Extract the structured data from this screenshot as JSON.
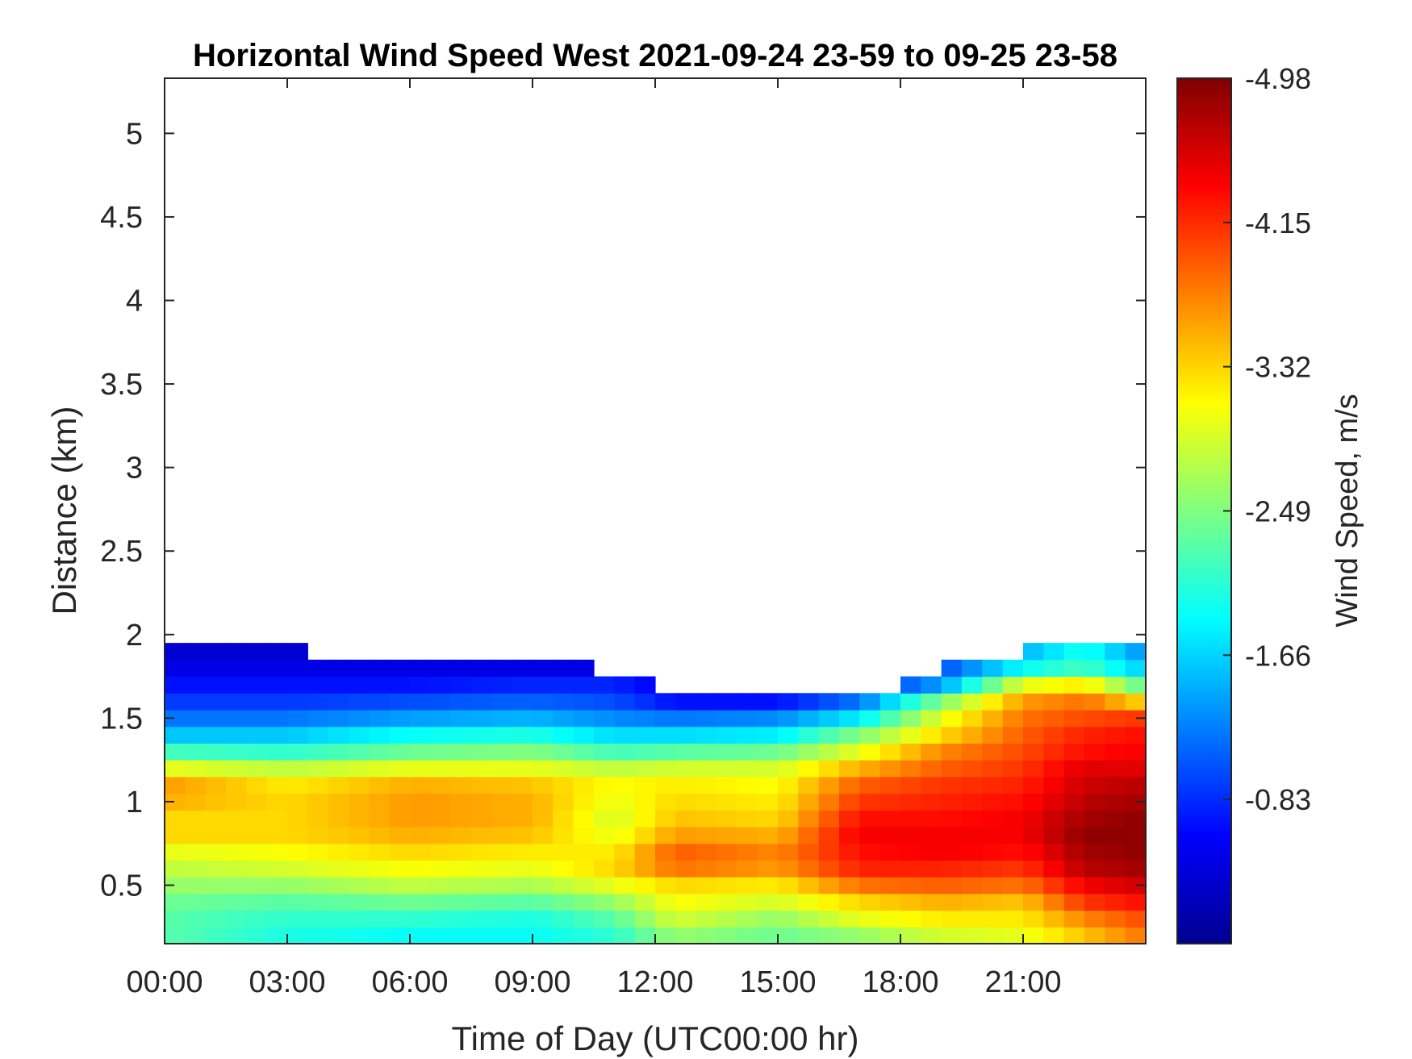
{
  "chart_data": {
    "type": "heatmap",
    "title": "Horizontal Wind Speed West 2021-09-24 23-59 to 09-25 23-58",
    "xlabel": "Time of Day (UTC00:00 hr)",
    "ylabel": "Distance (km)",
    "x_ticks": [
      {
        "value": 0,
        "label": "00:00"
      },
      {
        "value": 3,
        "label": "03:00"
      },
      {
        "value": 6,
        "label": "06:00"
      },
      {
        "value": 9,
        "label": "09:00"
      },
      {
        "value": 12,
        "label": "12:00"
      },
      {
        "value": 15,
        "label": "15:00"
      },
      {
        "value": 18,
        "label": "18:00"
      },
      {
        "value": 21,
        "label": "21:00"
      }
    ],
    "xlim": [
      0,
      24
    ],
    "y_ticks": [
      {
        "value": 0.5,
        "label": "0.5"
      },
      {
        "value": 1,
        "label": "1"
      },
      {
        "value": 1.5,
        "label": "1.5"
      },
      {
        "value": 2,
        "label": "2"
      },
      {
        "value": 2.5,
        "label": "2.5"
      },
      {
        "value": 3,
        "label": "3"
      },
      {
        "value": 3.5,
        "label": "3.5"
      },
      {
        "value": 4,
        "label": "4"
      },
      {
        "value": 4.5,
        "label": "4.5"
      },
      {
        "value": 5,
        "label": "5"
      }
    ],
    "ylim": [
      0.15,
      5.33
    ],
    "colorbar": {
      "label": "Wind Speed, m/s",
      "colormap": "jet-reversed",
      "range": [
        -0.0,
        -4.98
      ],
      "ticks": [
        {
          "value": -4.98,
          "label": "-4.98"
        },
        {
          "value": -4.15,
          "label": "-4.15"
        },
        {
          "value": -3.32,
          "label": "-3.32"
        },
        {
          "value": -2.49,
          "label": "-2.49"
        },
        {
          "value": -1.66,
          "label": "-1.66"
        },
        {
          "value": -0.83,
          "label": "-0.83"
        }
      ]
    },
    "grid": false,
    "time_step_hours": 0.5,
    "height_levels_km": [
      0.2,
      0.3,
      0.4,
      0.5,
      0.6,
      0.7,
      0.8,
      0.9,
      1.0,
      1.1,
      1.2,
      1.3,
      1.4,
      1.5,
      1.6,
      1.7,
      1.8,
      1.9,
      2.0,
      2.1,
      2.2
    ],
    "data_top_km": [
      1.9,
      1.9,
      1.9,
      1.9,
      1.9,
      1.9,
      1.9,
      1.8,
      1.8,
      1.8,
      1.8,
      1.8,
      1.8,
      1.8,
      1.8,
      1.8,
      1.8,
      1.8,
      1.8,
      1.8,
      1.8,
      1.7,
      1.7,
      1.7,
      1.6,
      1.6,
      1.6,
      1.6,
      1.6,
      1.6,
      1.6,
      1.6,
      1.6,
      1.6,
      1.6,
      1.6,
      1.7,
      1.7,
      1.8,
      1.8,
      1.8,
      1.8,
      1.9,
      1.9,
      1.9,
      1.9,
      1.9,
      1.9
    ],
    "profile_nodes_hours": [
      0,
      3,
      6,
      9,
      11,
      12.5,
      15,
      17,
      19,
      21,
      22.5,
      24
    ],
    "profile_nodes_values": [
      [
        -2.3,
        -2.3,
        -2.4,
        -2.6,
        -2.8,
        -3.0,
        -3.3,
        -3.3,
        -3.5,
        -3.6,
        -3.0,
        -2.2,
        -1.6,
        -1.2,
        -0.9,
        -0.7,
        -0.5,
        -0.4
      ],
      [
        -2.0,
        -2.1,
        -2.3,
        -2.6,
        -2.9,
        -3.1,
        -3.3,
        -3.3,
        -3.3,
        -3.2,
        -2.8,
        -2.1,
        -1.6,
        -1.2,
        -0.9,
        -0.7,
        -0.5,
        -0.4
      ],
      [
        -1.9,
        -2.1,
        -2.4,
        -2.8,
        -3.1,
        -3.3,
        -3.5,
        -3.6,
        -3.6,
        -3.5,
        -3.0,
        -2.4,
        -1.9,
        -1.4,
        -1.0,
        -0.7,
        -0.5,
        -0.4
      ],
      [
        -1.9,
        -2.0,
        -2.3,
        -2.7,
        -3.0,
        -3.2,
        -3.4,
        -3.5,
        -3.5,
        -3.4,
        -3.0,
        -2.5,
        -2.0,
        -1.5,
        -1.1,
        -0.8,
        -0.5,
        -0.4
      ],
      [
        -2.1,
        -2.3,
        -2.6,
        -3.0,
        -3.3,
        -3.2,
        -3.0,
        -2.9,
        -3.0,
        -3.1,
        -2.8,
        -2.2,
        -1.7,
        -1.3,
        -1.0,
        -0.8,
        -0.5,
        -0.4
      ],
      [
        -2.6,
        -2.9,
        -3.1,
        -3.3,
        -3.8,
        -3.9,
        -3.6,
        -3.4,
        -3.3,
        -3.2,
        -2.9,
        -2.3,
        -1.7,
        -1.2,
        -0.7,
        -0.5,
        -0.4,
        -0.3
      ],
      [
        -2.4,
        -2.6,
        -2.9,
        -3.2,
        -3.6,
        -3.7,
        -3.5,
        -3.3,
        -3.2,
        -3.1,
        -2.9,
        -2.4,
        -1.8,
        -1.3,
        -0.7,
        -0.5,
        -0.4,
        -0.3
      ],
      [
        -2.6,
        -3.0,
        -3.3,
        -3.8,
        -4.2,
        -4.3,
        -4.4,
        -4.3,
        -4.1,
        -3.9,
        -3.5,
        -3.0,
        -2.5,
        -1.8,
        -1.2,
        -0.7,
        -0.5,
        -0.4
      ],
      [
        -2.9,
        -3.2,
        -3.5,
        -3.9,
        -4.2,
        -4.4,
        -4.4,
        -4.3,
        -4.2,
        -4.1,
        -3.9,
        -3.7,
        -3.3,
        -3.0,
        -2.5,
        -1.4,
        -1.0,
        -0.8
      ],
      [
        -3.0,
        -3.2,
        -3.4,
        -3.8,
        -4.1,
        -4.3,
        -4.4,
        -4.4,
        -4.3,
        -4.2,
        -4.1,
        -4.0,
        -3.9,
        -3.8,
        -3.6,
        -3.0,
        -1.9,
        -1.5
      ],
      [
        -3.4,
        -3.7,
        -4.1,
        -4.4,
        -4.7,
        -4.8,
        -4.9,
        -4.8,
        -4.7,
        -4.6,
        -4.5,
        -4.3,
        -4.2,
        -4.0,
        -3.8,
        -3.2,
        -2.2,
        -2.0
      ],
      [
        -3.8,
        -4.0,
        -4.3,
        -4.6,
        -4.8,
        -4.9,
        -4.9,
        -4.9,
        -4.8,
        -4.7,
        -4.5,
        -4.4,
        -4.3,
        -4.1,
        -3.3,
        -2.3,
        -1.6,
        -1.3
      ]
    ]
  }
}
